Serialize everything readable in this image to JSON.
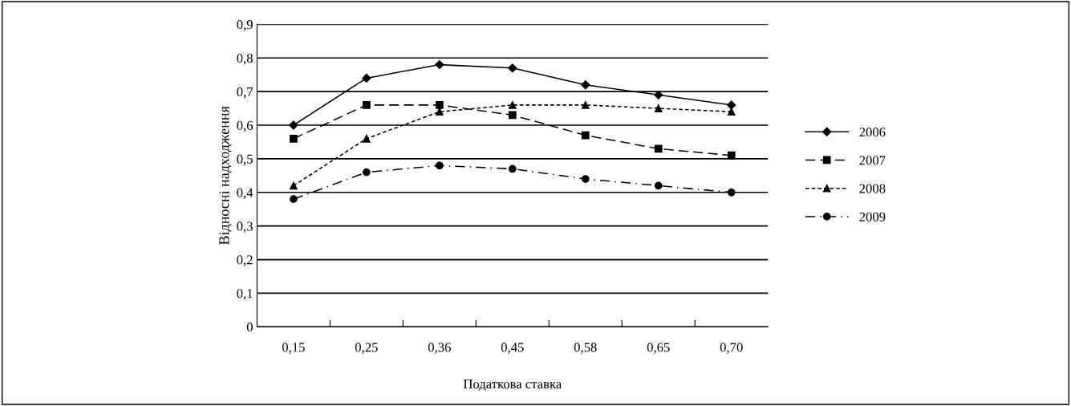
{
  "chart_data": {
    "type": "line",
    "xlabel": "Податкова ставка",
    "ylabel": "Відносні надходження",
    "categories": [
      "0,15",
      "0,25",
      "0,36",
      "0,45",
      "0,58",
      "0,65",
      "0,70"
    ],
    "ylim": [
      0,
      0.9
    ],
    "yticks": [
      {
        "value": 0,
        "label": "0"
      },
      {
        "value": 0.1,
        "label": "0,1"
      },
      {
        "value": 0.2,
        "label": "0,2"
      },
      {
        "value": 0.3,
        "label": "0,3"
      },
      {
        "value": 0.4,
        "label": "0,4"
      },
      {
        "value": 0.5,
        "label": "0,5"
      },
      {
        "value": 0.6,
        "label": "0,6"
      },
      {
        "value": 0.7,
        "label": "0,7"
      },
      {
        "value": 0.8,
        "label": "0,8"
      },
      {
        "value": 0.9,
        "label": "0,9"
      }
    ],
    "grid": "y",
    "legend": "right",
    "series": [
      {
        "name": "2006",
        "color": "#000000",
        "marker": "diamond",
        "line_style": "solid",
        "values": [
          0.6,
          0.74,
          0.78,
          0.77,
          0.72,
          0.69,
          0.66
        ]
      },
      {
        "name": "2007",
        "color": "#000000",
        "marker": "square",
        "line_style": "dashed",
        "values": [
          0.56,
          0.66,
          0.66,
          0.63,
          0.57,
          0.53,
          0.51
        ]
      },
      {
        "name": "2008",
        "color": "#000000",
        "marker": "triangle",
        "line_style": "dotted",
        "values": [
          0.42,
          0.56,
          0.64,
          0.66,
          0.66,
          0.65,
          0.64
        ]
      },
      {
        "name": "2009",
        "color": "#000000",
        "marker": "circle",
        "line_style": "dashdot",
        "values": [
          0.38,
          0.46,
          0.48,
          0.47,
          0.44,
          0.42,
          0.4
        ]
      }
    ]
  }
}
